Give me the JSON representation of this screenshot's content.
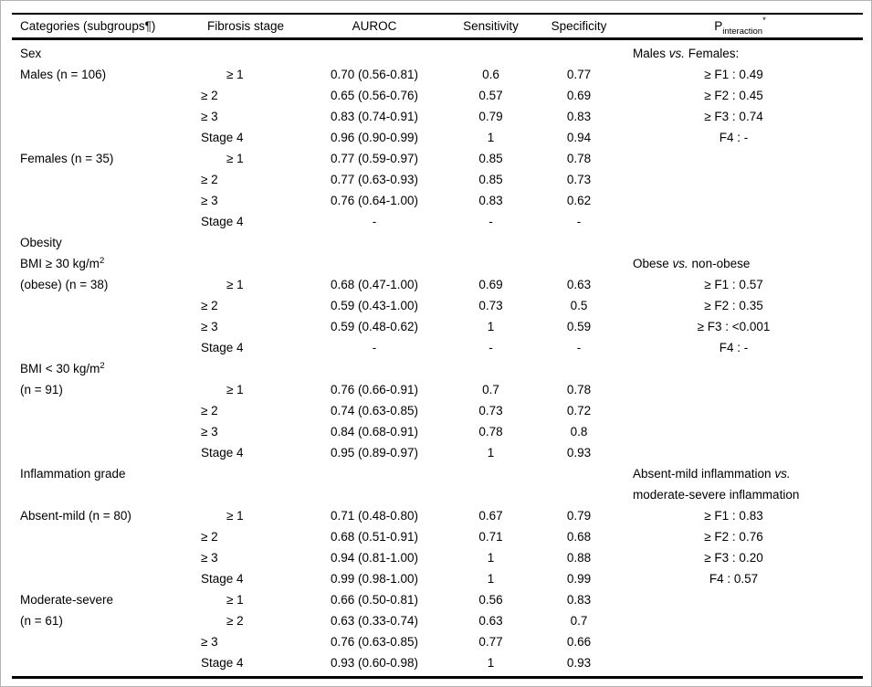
{
  "table": {
    "columns": [
      "Categories (subgroups¶)",
      "Fibrosis stage",
      "AUROC",
      "Sensitivity",
      "Specificity"
    ],
    "p_header": {
      "base": "P",
      "sub": "interaction",
      "sup": "*"
    },
    "rows": [
      {
        "cat": "Sex",
        "stage": "",
        "stage_indent": false,
        "auroc": "",
        "sens": "",
        "spec": "",
        "p": "Males vs. Females:",
        "p_label": true
      },
      {
        "cat": "Males (n = 106)",
        "stage": "≥ 1",
        "stage_indent": true,
        "auroc": "0.70 (0.56-0.81)",
        "sens": "0.6",
        "spec": "0.77",
        "p": "≥ F1 : 0.49",
        "p_label": false
      },
      {
        "cat": "",
        "stage": "≥ 2",
        "stage_indent": false,
        "auroc": "0.65 (0.56-0.76)",
        "sens": "0.57",
        "spec": "0.69",
        "p": "≥ F2 : 0.45",
        "p_label": false
      },
      {
        "cat": "",
        "stage": "≥ 3",
        "stage_indent": false,
        "auroc": "0.83 (0.74-0.91)",
        "sens": "0.79",
        "spec": "0.83",
        "p": "≥ F3 : 0.74",
        "p_label": false
      },
      {
        "cat": "",
        "stage": "Stage 4",
        "stage_indent": false,
        "auroc": "0.96 (0.90-0.99)",
        "sens": "1",
        "spec": "0.94",
        "p": "F4 : -",
        "p_label": false
      },
      {
        "cat": "Females (n = 35)",
        "stage": "≥ 1",
        "stage_indent": true,
        "auroc": "0.77 (0.59-0.97)",
        "sens": "0.85",
        "spec": "0.78",
        "p": "",
        "p_label": false
      },
      {
        "cat": "",
        "stage": "≥ 2",
        "stage_indent": false,
        "auroc": "0.77 (0.63-0.93)",
        "sens": "0.85",
        "spec": "0.73",
        "p": "",
        "p_label": false
      },
      {
        "cat": "",
        "stage": "≥ 3",
        "stage_indent": false,
        "auroc": "0.76 (0.64-1.00)",
        "sens": "0.83",
        "spec": "0.62",
        "p": "",
        "p_label": false
      },
      {
        "cat": "",
        "stage": "Stage 4",
        "stage_indent": false,
        "auroc": "-",
        "sens": "-",
        "spec": "-",
        "p": "",
        "p_label": false
      },
      {
        "cat": "Obesity",
        "stage": "",
        "stage_indent": false,
        "auroc": "",
        "sens": "",
        "spec": "",
        "p": "",
        "p_label": false
      },
      {
        "cat": "BMI ≥ 30 kg/m^{2}",
        "stage": "",
        "stage_indent": false,
        "auroc": "",
        "sens": "",
        "spec": "",
        "p": "Obese vs. non-obese",
        "p_label": true
      },
      {
        "cat": "(obese) (n = 38)",
        "stage": "≥ 1",
        "stage_indent": true,
        "auroc": "0.68 (0.47-1.00)",
        "sens": "0.69",
        "spec": "0.63",
        "p": "≥ F1 : 0.57",
        "p_label": false
      },
      {
        "cat": "",
        "stage": "≥ 2",
        "stage_indent": false,
        "auroc": "0.59 (0.43-1.00)",
        "sens": "0.73",
        "spec": "0.5",
        "p": "≥ F2 : 0.35",
        "p_label": false
      },
      {
        "cat": "",
        "stage": "≥ 3",
        "stage_indent": false,
        "auroc": "0.59 (0.48-0.62)",
        "sens": "1",
        "spec": "0.59",
        "p": "≥ F3 : <0.001",
        "p_label": false
      },
      {
        "cat": "",
        "stage": "Stage 4",
        "stage_indent": false,
        "auroc": "-",
        "sens": "-",
        "spec": "-",
        "p": "F4 : -",
        "p_label": false
      },
      {
        "cat": "BMI < 30 kg/m^{2}",
        "stage": "",
        "stage_indent": false,
        "auroc": "",
        "sens": "",
        "spec": "",
        "p": "",
        "p_label": false
      },
      {
        "cat": "(n = 91)",
        "stage": "≥ 1",
        "stage_indent": true,
        "auroc": "0.76 (0.66-0.91)",
        "sens": "0.7",
        "spec": "0.78",
        "p": "",
        "p_label": false
      },
      {
        "cat": "",
        "stage": "≥ 2",
        "stage_indent": false,
        "auroc": "0.74 (0.63-0.85)",
        "sens": "0.73",
        "spec": "0.72",
        "p": "",
        "p_label": false
      },
      {
        "cat": "",
        "stage": "≥ 3",
        "stage_indent": false,
        "auroc": "0.84 (0.68-0.91)",
        "sens": "0.78",
        "spec": "0.8",
        "p": "",
        "p_label": false
      },
      {
        "cat": "",
        "stage": "Stage 4",
        "stage_indent": false,
        "auroc": "0.95 (0.89-0.97)",
        "sens": "1",
        "spec": "0.93",
        "p": "",
        "p_label": false
      },
      {
        "cat": "Inflammation grade",
        "stage": "",
        "stage_indent": false,
        "auroc": "",
        "sens": "",
        "spec": "",
        "p": "Absent-mild inflammation vs.",
        "p_label": true
      },
      {
        "cat": "",
        "stage": "",
        "stage_indent": false,
        "auroc": "",
        "sens": "",
        "spec": "",
        "p": "moderate-severe inflammation",
        "p_label": true
      },
      {
        "cat": "Absent-mild (n = 80)",
        "stage": "≥ 1",
        "stage_indent": true,
        "auroc": "0.71 (0.48-0.80)",
        "sens": "0.67",
        "spec": "0.79",
        "p": "≥ F1 : 0.83",
        "p_label": false
      },
      {
        "cat": "",
        "stage": "≥ 2",
        "stage_indent": false,
        "auroc": "0.68 (0.51-0.91)",
        "sens": "0.71",
        "spec": "0.68",
        "p": "≥ F2 : 0.76",
        "p_label": false
      },
      {
        "cat": "",
        "stage": "≥ 3",
        "stage_indent": false,
        "auroc": "0.94 (0.81-1.00)",
        "sens": "1",
        "spec": "0.88",
        "p": "≥ F3 : 0.20",
        "p_label": false
      },
      {
        "cat": "",
        "stage": "Stage 4",
        "stage_indent": false,
        "auroc": "0.99 (0.98-1.00)",
        "sens": "1",
        "spec": "0.99",
        "p": "F4 : 0.57",
        "p_label": false
      },
      {
        "cat": "Moderate-severe",
        "stage": "≥ 1",
        "stage_indent": true,
        "auroc": "0.66 (0.50-0.81)",
        "sens": "0.56",
        "spec": "0.83",
        "p": "",
        "p_label": false
      },
      {
        "cat": "(n = 61)",
        "stage": "≥ 2",
        "stage_indent": true,
        "auroc": "0.63 (0.33-0.74)",
        "sens": "0.63",
        "spec": "0.7",
        "p": "",
        "p_label": false
      },
      {
        "cat": "",
        "stage": "≥ 3",
        "stage_indent": false,
        "auroc": "0.76 (0.63-0.85)",
        "sens": "0.77",
        "spec": "0.66",
        "p": "",
        "p_label": false
      },
      {
        "cat": "",
        "stage": "Stage 4",
        "stage_indent": false,
        "auroc": "0.93 (0.60-0.98)",
        "sens": "1",
        "spec": "0.93",
        "p": "",
        "p_label": false
      }
    ]
  }
}
